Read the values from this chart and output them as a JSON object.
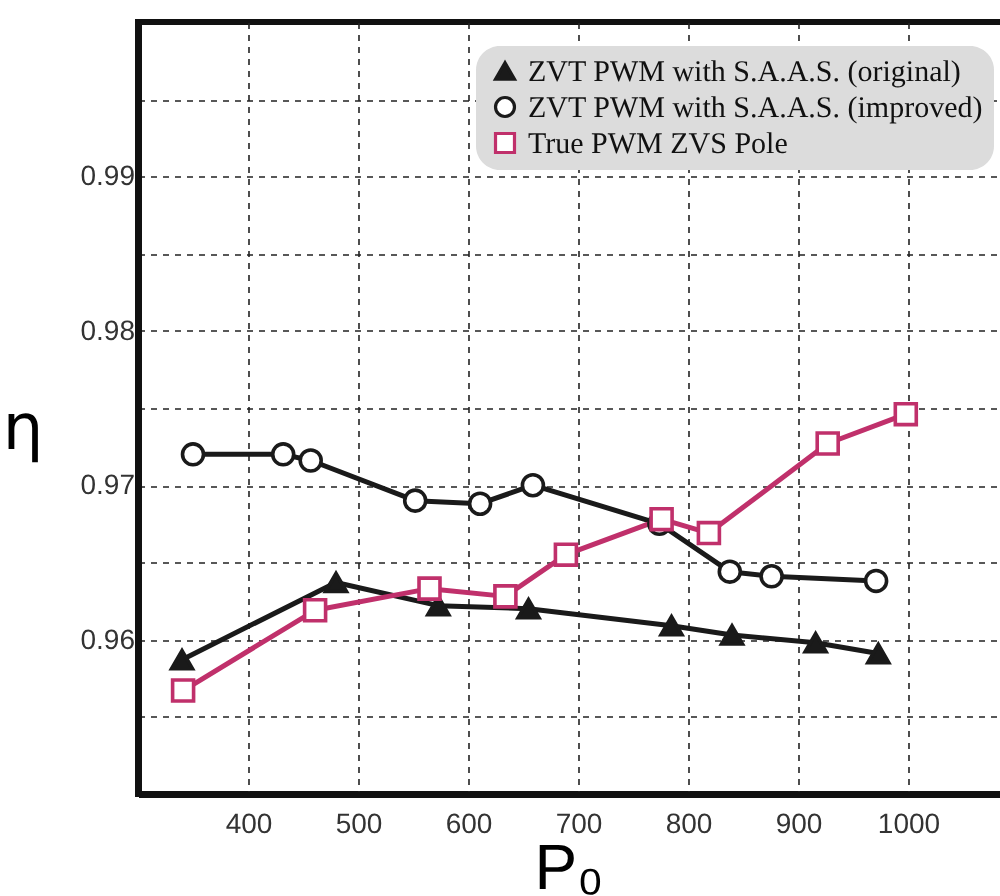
{
  "chart_data": {
    "type": "line",
    "xlabel": "P₀",
    "ylabel": "η",
    "xlim": [
      300,
      1100
    ],
    "xticks": [
      400,
      500,
      600,
      700,
      800,
      900,
      1000
    ],
    "ylim": [
      0.95,
      1.0
    ],
    "yticks": [
      {
        "value": 0.955,
        "label": null
      },
      0.96,
      {
        "value": 0.965,
        "label": null
      },
      0.97,
      {
        "value": 0.975,
        "label": null
      },
      0.98,
      {
        "value": 0.985,
        "label": null
      },
      0.99,
      {
        "value": 0.995,
        "label": null
      }
    ],
    "grid": true,
    "legend": "top right",
    "line_style": "solid",
    "series": [
      {
        "name": "ZVT PWM with S.A.A.S. (original)",
        "color": "#1a1a1a",
        "marker": "triangle",
        "x": [
          340,
          480,
          573,
          655,
          785,
          840,
          916,
          973
        ],
        "values": [
          0.9587,
          0.9637,
          0.9622,
          0.962,
          0.9609,
          0.9603,
          0.9598,
          0.9591
        ]
      },
      {
        "name": "ZVT PWM with S.A.A.S. (improved)",
        "color": "#1a1a1a",
        "marker": "circle",
        "x": [
          350,
          432,
          457,
          552,
          611,
          659,
          774,
          838,
          876,
          971
        ],
        "values": [
          0.972,
          0.972,
          0.9716,
          0.969,
          0.9688,
          0.97,
          0.9675,
          0.9644,
          0.9641,
          0.9638
        ]
      },
      {
        "name": "True PWM ZVS Pole",
        "color": "#c0306b",
        "marker": "square",
        "x": [
          341,
          461,
          565,
          634,
          689,
          776,
          819,
          927,
          998
        ],
        "values": [
          0.9567,
          0.9619,
          0.9633,
          0.9628,
          0.9655,
          0.9678,
          0.9669,
          0.9727,
          0.9746
        ]
      }
    ]
  }
}
